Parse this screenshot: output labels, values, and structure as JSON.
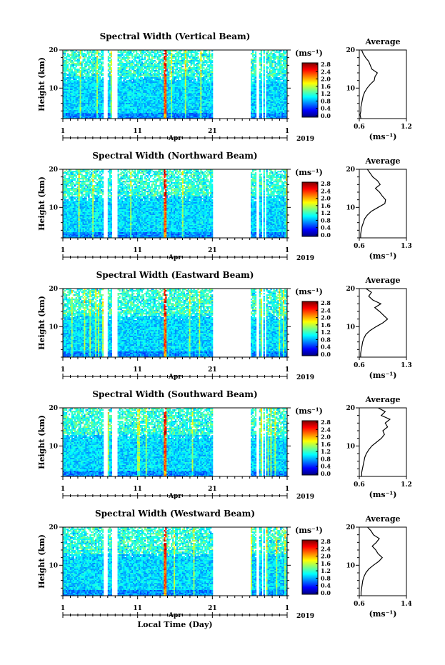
{
  "figure": {
    "xlabel": "Local Time (Day)",
    "month_label": "Apr",
    "year_label": "2019",
    "x_ticklabels": [
      "1",
      "11",
      "21",
      "1"
    ],
    "y_ticklabels": [
      "10",
      "20"
    ],
    "ylabel": "Height (km)",
    "avg_title": "Average",
    "units": "(ms⁻¹)",
    "colorbar_ticks": [
      "0.0",
      "0.4",
      "0.8",
      "1.2",
      "1.6",
      "2.0",
      "2.4",
      "2.8"
    ],
    "colormap": [
      "#00007f",
      "#0000ff",
      "#007fff",
      "#00ffff",
      "#7fff7f",
      "#ffff00",
      "#ff7f00",
      "#ff0000",
      "#7f0000"
    ]
  },
  "chart_data": [
    {
      "type": "heatmap",
      "title": "Spectral Width (Vertical Beam)",
      "ylabel": "Height (km)",
      "ylim": [
        2,
        20
      ],
      "xlim": [
        1,
        31
      ],
      "colorbar_label": "(ms⁻¹)",
      "clim": [
        0.0,
        2.8
      ],
      "avg_profile": {
        "title": "Average",
        "xlabel": "(ms⁻¹)",
        "xlim": [
          0.6,
          1.2
        ],
        "xticks": [
          "0.6",
          "1.2"
        ],
        "height_km": [
          2,
          3,
          4,
          5,
          6,
          7,
          8,
          9,
          10,
          11,
          12,
          13,
          14,
          15,
          16,
          17,
          18,
          19,
          20
        ],
        "value": [
          0.62,
          0.61,
          0.62,
          0.62,
          0.63,
          0.64,
          0.65,
          0.67,
          0.7,
          0.74,
          0.79,
          0.8,
          0.83,
          0.76,
          0.74,
          0.72,
          0.68,
          0.65,
          0.63
        ]
      }
    },
    {
      "type": "heatmap",
      "title": "Spectral Width (Northward Beam)",
      "ylabel": "Height (km)",
      "ylim": [
        2,
        20
      ],
      "xlim": [
        1,
        31
      ],
      "colorbar_label": "(ms⁻¹)",
      "clim": [
        0.0,
        2.8
      ],
      "avg_profile": {
        "title": "Average",
        "xlabel": "(ms⁻¹)",
        "xlim": [
          0.6,
          1.3
        ],
        "xticks": [
          "0.6",
          "1.3"
        ],
        "height_km": [
          2,
          3,
          4,
          5,
          6,
          7,
          8,
          9,
          10,
          11,
          12,
          13,
          14,
          15,
          16,
          17,
          18,
          19,
          20
        ],
        "value": [
          0.62,
          0.62,
          0.63,
          0.64,
          0.66,
          0.68,
          0.72,
          0.78,
          0.88,
          0.98,
          0.99,
          0.94,
          0.9,
          0.84,
          0.91,
          0.87,
          0.8,
          0.76,
          0.72
        ]
      }
    },
    {
      "type": "heatmap",
      "title": "Spectral Width (Eastward Beam)",
      "ylabel": "Height (km)",
      "ylim": [
        2,
        20
      ],
      "xlim": [
        1,
        31
      ],
      "colorbar_label": "(ms⁻¹)",
      "clim": [
        0.0,
        2.8
      ],
      "avg_profile": {
        "title": "Average",
        "xlabel": "(ms⁻¹)",
        "xlim": [
          0.6,
          1.3
        ],
        "xticks": [
          "0.6",
          "1.3"
        ],
        "height_km": [
          2,
          3,
          4,
          5,
          6,
          7,
          8,
          9,
          10,
          11,
          12,
          13,
          14,
          15,
          16,
          17,
          18,
          19,
          20
        ],
        "value": [
          0.62,
          0.62,
          0.63,
          0.64,
          0.65,
          0.67,
          0.7,
          0.76,
          0.85,
          0.95,
          1.02,
          0.96,
          0.9,
          0.83,
          0.92,
          0.8,
          0.74,
          0.78,
          0.7
        ]
      }
    },
    {
      "type": "heatmap",
      "title": "Spectral Width (Southward Beam)",
      "ylabel": "Height (km)",
      "ylim": [
        2,
        20
      ],
      "xlim": [
        1,
        31
      ],
      "colorbar_label": "(ms⁻¹)",
      "clim": [
        0.0,
        2.8
      ],
      "avg_profile": {
        "title": "Average",
        "xlabel": "(ms⁻¹)",
        "xlim": [
          0.6,
          1.2
        ],
        "xticks": [
          "0.6",
          "1.2"
        ],
        "height_km": [
          2,
          3,
          4,
          5,
          6,
          7,
          8,
          9,
          10,
          11,
          12,
          13,
          14,
          15,
          16,
          17,
          18,
          19,
          20
        ],
        "value": [
          0.63,
          0.63,
          0.64,
          0.65,
          0.66,
          0.67,
          0.69,
          0.72,
          0.76,
          0.82,
          0.88,
          0.92,
          0.9,
          0.96,
          0.93,
          0.99,
          0.88,
          0.93,
          0.84
        ]
      }
    },
    {
      "type": "heatmap",
      "title": "Spectral Width (Westward Beam)",
      "ylabel": "Height (km)",
      "ylim": [
        2,
        20
      ],
      "xlim": [
        1,
        31
      ],
      "colorbar_label": "(ms⁻¹)",
      "clim": [
        0.0,
        2.8
      ],
      "avg_profile": {
        "title": "Average",
        "xlabel": "(ms⁻¹)",
        "xlim": [
          0.6,
          1.4
        ],
        "xticks": [
          "0.6",
          "1.4"
        ],
        "height_km": [
          2,
          3,
          4,
          5,
          6,
          7,
          8,
          9,
          10,
          11,
          12,
          13,
          14,
          15,
          16,
          17,
          18,
          19,
          20
        ],
        "value": [
          0.63,
          0.63,
          0.64,
          0.65,
          0.66,
          0.68,
          0.71,
          0.76,
          0.84,
          0.93,
          0.99,
          0.92,
          0.88,
          0.82,
          0.89,
          0.94,
          0.84,
          0.8,
          0.74
        ]
      }
    }
  ]
}
